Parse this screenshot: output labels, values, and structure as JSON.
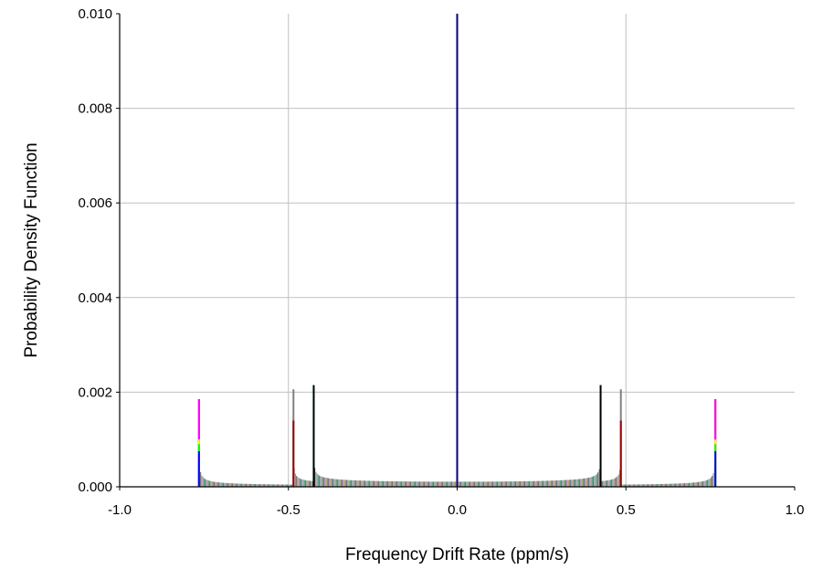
{
  "chart_data": {
    "type": "area",
    "xlabel": "Frequency Drift Rate (ppm/s)",
    "ylabel": "Probability Density Function",
    "xlim": [
      -1.0,
      1.0
    ],
    "ylim": [
      0.0,
      0.01
    ],
    "x_ticks": [
      "-1.0",
      "-0.5",
      "0.0",
      "0.5",
      "1.0"
    ],
    "y_ticks": [
      "0.000",
      "0.002",
      "0.004",
      "0.006",
      "0.008",
      "0.010"
    ],
    "grid": true,
    "legend": "none",
    "center_line": {
      "x": 0.0,
      "color": "#00007f"
    },
    "baseline_density": 0.00012,
    "series": [
      {
        "name": "",
        "color": "#cc0000",
        "edges": [
          -0.765,
          0.765
        ],
        "peak": 0.00185
      },
      {
        "name": "",
        "color": "#ff00ff",
        "edges": [
          -0.765,
          0.765
        ],
        "peak": 0.00185
      },
      {
        "name": "",
        "color": "#00ffff",
        "edges": [
          -0.425,
          0.425
        ],
        "peak": 0.00213
      },
      {
        "name": "",
        "color": "#000000",
        "edges": [
          -0.425,
          0.425
        ],
        "peak": 0.00215
      },
      {
        "name": "",
        "color": "#808080",
        "edges": [
          -0.485,
          0.485
        ],
        "peak": 0.00206
      },
      {
        "name": "",
        "color": "#990000",
        "edges": [
          -0.485,
          0.485
        ],
        "peak": 0.0014
      },
      {
        "name": "",
        "color": "#ffff00",
        "edges": [
          -0.765,
          0.765
        ],
        "peak": 0.001
      },
      {
        "name": "",
        "color": "#00ff00",
        "edges": [
          -0.765,
          0.765
        ],
        "peak": 0.0009
      },
      {
        "name": "",
        "color": "#0000ff",
        "edges": [
          -0.765,
          0.765
        ],
        "peak": 0.00075
      }
    ]
  }
}
